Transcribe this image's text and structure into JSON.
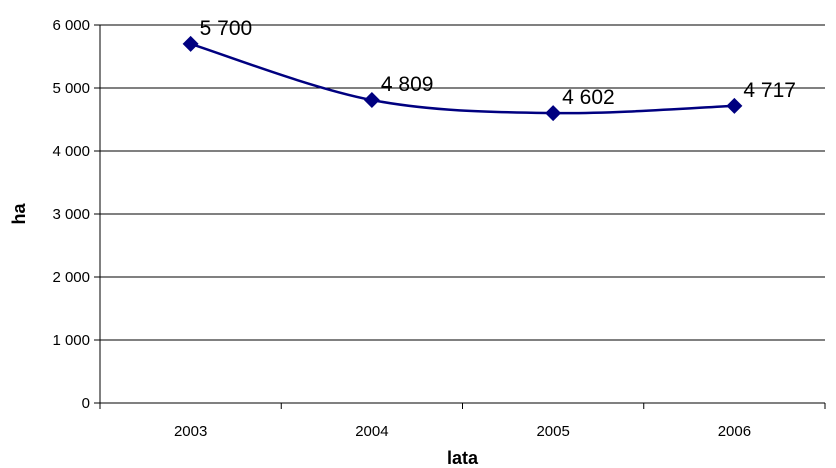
{
  "chart_data": {
    "type": "line",
    "categories": [
      "2003",
      "2004",
      "2005",
      "2006"
    ],
    "series": [
      {
        "values": [
          5700,
          4809,
          4602,
          4717
        ],
        "data_labels": [
          "5 700",
          "4 809",
          "4 602",
          "4 717"
        ],
        "color": "#000080",
        "marker": "diamond",
        "smooth": true
      }
    ],
    "xlabel": "lata",
    "ylabel": "ha",
    "ylim": [
      0,
      6000
    ],
    "yticks": [
      0,
      1000,
      2000,
      3000,
      4000,
      5000,
      6000
    ],
    "ytick_labels": [
      "0",
      "1 000",
      "2 000",
      "3 000",
      "4 000",
      "5 000",
      "6 000"
    ],
    "grid": {
      "horizontal": true,
      "vertical": false
    },
    "legend": "none",
    "colors": {
      "line": "#000080",
      "grid": "#000000",
      "axis": "#000000"
    }
  }
}
